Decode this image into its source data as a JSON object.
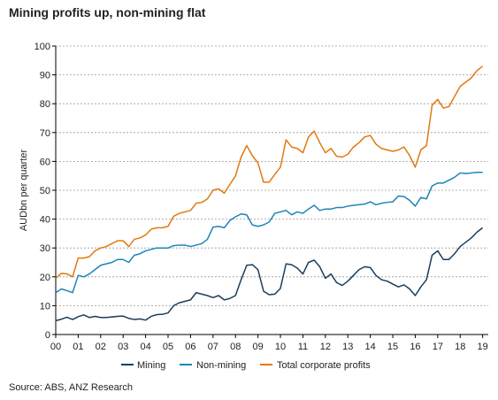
{
  "title": "Mining profits up, non-mining flat",
  "source": "Source: ABS, ANZ Research",
  "chart_data": {
    "type": "line",
    "title": "Mining profits up, non-mining flat",
    "ylabel": "AUDbn per quarter",
    "xlabel": "",
    "ylim": [
      0,
      100
    ],
    "yticks": [
      0,
      10,
      20,
      30,
      40,
      50,
      60,
      70,
      80,
      90,
      100
    ],
    "xlim": [
      0,
      19.25
    ],
    "xtick_labels": [
      "00",
      "01",
      "02",
      "03",
      "04",
      "05",
      "06",
      "07",
      "08",
      "09",
      "10",
      "11",
      "12",
      "13",
      "14",
      "15",
      "16",
      "17",
      "18",
      "19"
    ],
    "grid": "horizontal dashed",
    "legend_position": "bottom",
    "series": [
      {
        "name": "Mining",
        "color": "#1a3e5c",
        "values": [
          4.8,
          5.3,
          6.0,
          5.2,
          6.2,
          6.8,
          5.9,
          6.3,
          5.9,
          5.9,
          6.1,
          6.3,
          6.4,
          5.6,
          5.2,
          5.4,
          5.0,
          6.3,
          6.9,
          7.0,
          7.5,
          10.0,
          11.0,
          11.5,
          12.0,
          14.5,
          14.0,
          13.5,
          12.8,
          13.5,
          12.0,
          12.5,
          13.5,
          19.0,
          24.0,
          24.2,
          22.5,
          15.0,
          13.8,
          14.0,
          16.0,
          24.5,
          24.2,
          23.0,
          21.0,
          25.0,
          25.8,
          23.5,
          19.5,
          21.0,
          18.0,
          17.0,
          18.5,
          20.5,
          22.5,
          23.5,
          23.2,
          20.5,
          19.0,
          18.5,
          17.5,
          16.5,
          17.2,
          15.8,
          13.5,
          16.5,
          19.0,
          27.5,
          29.0,
          26.0,
          26.0,
          28.0,
          30.5,
          32.0,
          33.5,
          35.5,
          37.0
        ]
      },
      {
        "name": "Non-mining",
        "color": "#1e84b8",
        "values": [
          14.5,
          15.8,
          15.2,
          14.5,
          20.5,
          20.0,
          21.0,
          22.5,
          24.0,
          24.5,
          25.0,
          26.0,
          26.0,
          25.0,
          27.5,
          28.0,
          29.0,
          29.5,
          30.0,
          30.0,
          30.0,
          30.8,
          31.0,
          31.0,
          30.5,
          31.0,
          31.5,
          33.0,
          37.2,
          37.5,
          37.0,
          39.5,
          40.8,
          41.8,
          41.5,
          38.0,
          37.5,
          38.0,
          39.0,
          42.0,
          42.5,
          43.0,
          41.5,
          42.5,
          42.0,
          43.5,
          44.8,
          43.0,
          43.5,
          43.5,
          44.0,
          44.0,
          44.5,
          44.8,
          45.0,
          45.2,
          46.0,
          45.0,
          45.5,
          45.8,
          46.0,
          48.0,
          47.8,
          46.5,
          44.5,
          47.5,
          47.0,
          51.5,
          52.5,
          52.5,
          53.5,
          54.5,
          56.0,
          55.8,
          56.0,
          56.2,
          56.2
        ]
      },
      {
        "name": "Total corporate profits",
        "color": "#e07a12",
        "values": [
          19.5,
          21.2,
          21.0,
          20.0,
          26.5,
          26.5,
          27.0,
          29.0,
          30.0,
          30.5,
          31.5,
          32.5,
          32.5,
          30.5,
          33.0,
          33.5,
          34.5,
          36.5,
          37.0,
          37.0,
          37.5,
          41.0,
          42.0,
          42.5,
          43.0,
          45.5,
          45.8,
          47.0,
          50.0,
          50.5,
          49.0,
          52.0,
          55.0,
          61.5,
          65.5,
          62.0,
          59.5,
          52.8,
          52.8,
          55.5,
          58.0,
          67.5,
          65.0,
          64.5,
          63.0,
          68.5,
          70.5,
          66.5,
          63.0,
          64.5,
          61.8,
          61.5,
          62.5,
          65.0,
          66.5,
          68.5,
          69.0,
          66.0,
          64.5,
          64.0,
          63.5,
          64.0,
          65.0,
          62.0,
          58.0,
          64.0,
          65.5,
          79.5,
          81.5,
          78.5,
          79.0,
          82.5,
          86.0,
          87.5,
          89.0,
          91.5,
          93.0
        ]
      }
    ]
  }
}
